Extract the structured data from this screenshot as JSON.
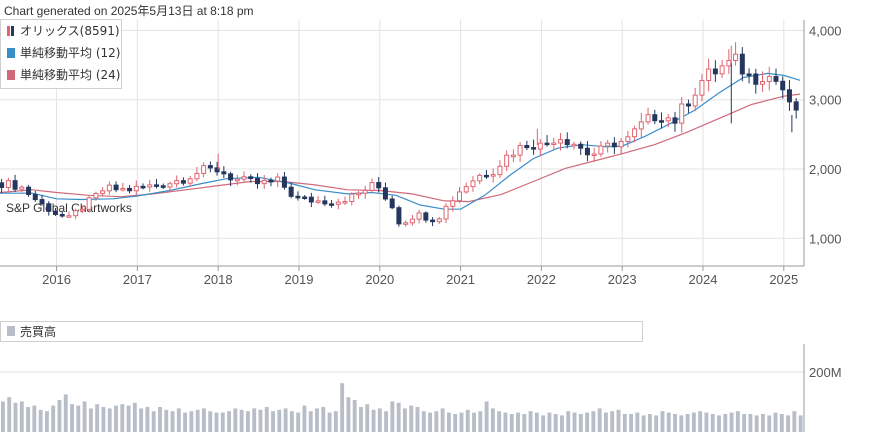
{
  "header": {
    "generated": "Chart generated on 2025年5月13日 at 8:18 pm"
  },
  "watermark": "S&P Global Chartworks",
  "colors": {
    "up": "#e06470",
    "down": "#25375e",
    "ma12": "#3a8ec8",
    "ma24": "#d06a7a",
    "volume": "#b7bec8",
    "grid": "#e3e3e3"
  },
  "chart_data": [
    {
      "type": "candlestick",
      "legend": [
        {
          "name": "オリックス(8591)",
          "icon": "candle-icon"
        },
        {
          "name": "単純移動平均 (12)",
          "color": "#3a8ec8"
        },
        {
          "name": "単純移動平均 (24)",
          "color": "#d06a7a"
        }
      ],
      "x_ticks": [
        "2016",
        "2017",
        "2018",
        "2019",
        "2020",
        "2021",
        "2022",
        "2023",
        "2024",
        "2025"
      ],
      "y_ticks": [
        "1,000",
        "2,000",
        "3,000",
        "4,000"
      ],
      "ylim": [
        600,
        4150
      ],
      "x_range": [
        2015.3,
        2025.25
      ],
      "grid": true,
      "close_path": [
        [
          2015.3,
          1800
        ],
        [
          2015.55,
          1750
        ],
        [
          2015.8,
          1500
        ],
        [
          2016.0,
          1350
        ],
        [
          2016.15,
          1280
        ],
        [
          2016.35,
          1480
        ],
        [
          2016.6,
          1720
        ],
        [
          2016.85,
          1700
        ],
        [
          2017.0,
          1720
        ],
        [
          2017.3,
          1780
        ],
        [
          2017.55,
          1850
        ],
        [
          2017.8,
          1980
        ],
        [
          2018.0,
          1990
        ],
        [
          2018.2,
          1850
        ],
        [
          2018.5,
          1790
        ],
        [
          2018.75,
          1830
        ],
        [
          2018.95,
          1580
        ],
        [
          2019.2,
          1540
        ],
        [
          2019.45,
          1530
        ],
        [
          2019.7,
          1620
        ],
        [
          2019.95,
          1790
        ],
        [
          2020.15,
          1470
        ],
        [
          2020.25,
          1200
        ],
        [
          2020.45,
          1350
        ],
        [
          2020.7,
          1260
        ],
        [
          2020.85,
          1500
        ],
        [
          2021.0,
          1700
        ],
        [
          2021.2,
          1890
        ],
        [
          2021.4,
          1980
        ],
        [
          2021.6,
          2220
        ],
        [
          2021.85,
          2380
        ],
        [
          2022.0,
          2330
        ],
        [
          2022.2,
          2480
        ],
        [
          2022.4,
          2380
        ],
        [
          2022.6,
          2200
        ],
        [
          2022.75,
          2270
        ],
        [
          2022.9,
          2380
        ],
        [
          2023.05,
          2400
        ],
        [
          2023.25,
          2650
        ],
        [
          2023.45,
          2800
        ],
        [
          2023.65,
          2700
        ],
        [
          2023.85,
          3050
        ],
        [
          2024.0,
          3300
        ],
        [
          2024.25,
          3480
        ],
        [
          2024.4,
          3550
        ],
        [
          2024.6,
          3300
        ],
        [
          2024.75,
          3380
        ],
        [
          2024.9,
          3280
        ],
        [
          2025.0,
          3130
        ],
        [
          2025.1,
          2780
        ],
        [
          2025.2,
          2950
        ]
      ],
      "ma12": [
        [
          2015.3,
          1650
        ],
        [
          2015.7,
          1650
        ],
        [
          2016.0,
          1570
        ],
        [
          2016.3,
          1560
        ],
        [
          2016.7,
          1570
        ],
        [
          2017.0,
          1610
        ],
        [
          2017.4,
          1690
        ],
        [
          2017.8,
          1790
        ],
        [
          2018.1,
          1860
        ],
        [
          2018.5,
          1880
        ],
        [
          2018.9,
          1790
        ],
        [
          2019.2,
          1700
        ],
        [
          2019.6,
          1640
        ],
        [
          2019.9,
          1660
        ],
        [
          2020.2,
          1620
        ],
        [
          2020.5,
          1480
        ],
        [
          2020.8,
          1420
        ],
        [
          2021.0,
          1420
        ],
        [
          2021.3,
          1620
        ],
        [
          2021.6,
          1900
        ],
        [
          2021.9,
          2150
        ],
        [
          2022.2,
          2300
        ],
        [
          2022.5,
          2350
        ],
        [
          2022.8,
          2320
        ],
        [
          2023.0,
          2330
        ],
        [
          2023.3,
          2480
        ],
        [
          2023.6,
          2660
        ],
        [
          2023.9,
          2850
        ],
        [
          2024.2,
          3100
        ],
        [
          2024.5,
          3320
        ],
        [
          2024.8,
          3380
        ],
        [
          2025.0,
          3350
        ],
        [
          2025.2,
          3280
        ]
      ],
      "ma24": [
        [
          2015.3,
          1660
        ],
        [
          2015.7,
          1700
        ],
        [
          2016.0,
          1660
        ],
        [
          2016.4,
          1620
        ],
        [
          2016.8,
          1600
        ],
        [
          2017.2,
          1640
        ],
        [
          2017.6,
          1700
        ],
        [
          2018.0,
          1760
        ],
        [
          2018.4,
          1820
        ],
        [
          2018.8,
          1820
        ],
        [
          2019.2,
          1770
        ],
        [
          2019.6,
          1700
        ],
        [
          2020.0,
          1690
        ],
        [
          2020.4,
          1640
        ],
        [
          2020.8,
          1540
        ],
        [
          2021.1,
          1530
        ],
        [
          2021.5,
          1630
        ],
        [
          2021.9,
          1820
        ],
        [
          2022.3,
          2010
        ],
        [
          2022.7,
          2130
        ],
        [
          2023.0,
          2220
        ],
        [
          2023.4,
          2350
        ],
        [
          2023.8,
          2530
        ],
        [
          2024.2,
          2730
        ],
        [
          2024.6,
          2930
        ],
        [
          2025.0,
          3050
        ],
        [
          2025.2,
          3080
        ]
      ],
      "spikes": [
        {
          "x": 2018.0,
          "high": 2220
        },
        {
          "x": 2021.95,
          "high": 2580
        },
        {
          "x": 2024.35,
          "high": 3780,
          "low": 2660
        },
        {
          "x": 2025.1,
          "low": 2530
        }
      ]
    },
    {
      "type": "bar",
      "title": "売買高",
      "y_ticks": [
        "200M"
      ],
      "ylim": [
        0,
        300
      ],
      "values": [
        95,
        110,
        90,
        95,
        75,
        80,
        65,
        60,
        80,
        100,
        120,
        85,
        80,
        95,
        70,
        85,
        75,
        70,
        80,
        85,
        80,
        90,
        70,
        75,
        60,
        75,
        65,
        60,
        70,
        55,
        60,
        65,
        70,
        60,
        55,
        55,
        60,
        70,
        65,
        60,
        70,
        65,
        75,
        60,
        65,
        70,
        60,
        55,
        80,
        60,
        70,
        75,
        55,
        60,
        160,
        110,
        100,
        75,
        85,
        65,
        70,
        60,
        95,
        90,
        70,
        80,
        75,
        60,
        55,
        60,
        70,
        55,
        50,
        55,
        65,
        55,
        60,
        95,
        70,
        60,
        55,
        50,
        55,
        50,
        60,
        55,
        45,
        55,
        50,
        45,
        60,
        55,
        50,
        55,
        60,
        70,
        55,
        60,
        65,
        50,
        50,
        55,
        45,
        50,
        45,
        60,
        55,
        50,
        45,
        50,
        55,
        60,
        55,
        50,
        45,
        50,
        55,
        60,
        50,
        50,
        45,
        50,
        45,
        55,
        50,
        45,
        60,
        45
      ]
    }
  ]
}
